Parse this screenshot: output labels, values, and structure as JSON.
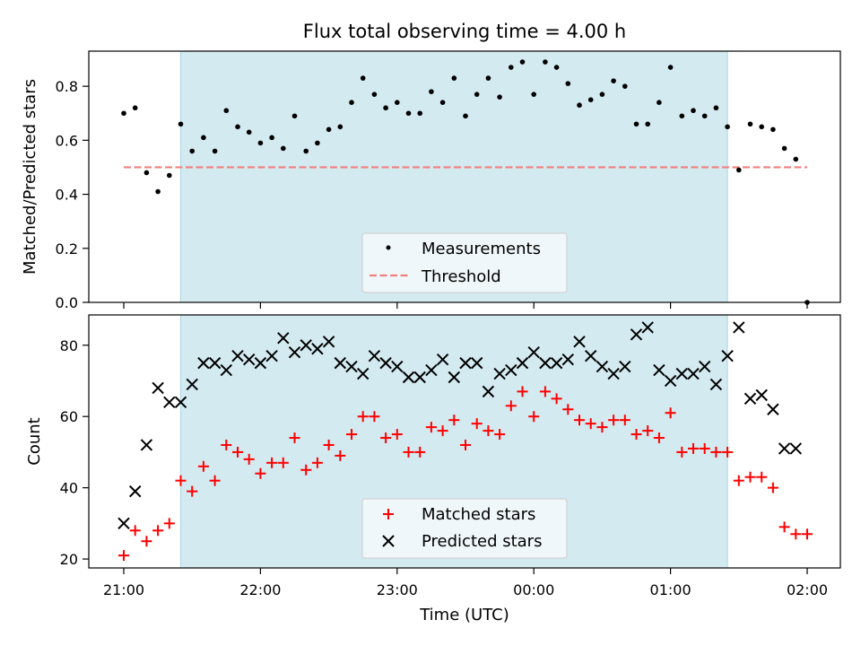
{
  "chart_data": [
    {
      "type": "scatter",
      "title": "Flux total observing time = 4.00 h",
      "ylabel": "Matched/Predicted stars",
      "ylim": [
        0,
        0.93
      ],
      "yticks": [
        "0.0",
        "0.2",
        "0.4",
        "0.6",
        "0.8"
      ],
      "shaded_region": {
        "x_start": "21:25",
        "x_end": "01:25",
        "color": "#d3eaf0"
      },
      "legend": {
        "placement": "bottom-center"
      },
      "threshold": {
        "name": "Threshold",
        "value": 0.5,
        "color": "#f08080",
        "style": "dashed"
      },
      "series": [
        {
          "name": "Measurements",
          "color": "#000000",
          "marker": "dot",
          "x": [
            "21:00",
            "21:05",
            "21:10",
            "21:15",
            "21:20",
            "21:25",
            "21:30",
            "21:35",
            "21:40",
            "21:45",
            "21:50",
            "21:55",
            "22:00",
            "22:05",
            "22:10",
            "22:15",
            "22:20",
            "22:25",
            "22:30",
            "22:35",
            "22:40",
            "22:45",
            "22:50",
            "22:55",
            "23:00",
            "23:05",
            "23:10",
            "23:15",
            "23:20",
            "23:25",
            "23:30",
            "23:35",
            "23:40",
            "23:45",
            "23:50",
            "23:55",
            "00:00",
            "00:05",
            "00:10",
            "00:15",
            "00:20",
            "00:25",
            "00:30",
            "00:35",
            "00:40",
            "00:45",
            "00:50",
            "00:55",
            "01:00",
            "01:05",
            "01:10",
            "01:15",
            "01:20",
            "01:25",
            "01:30",
            "01:35",
            "01:40",
            "01:45",
            "01:50",
            "01:55",
            "02:00"
          ],
          "y": [
            0.7,
            0.72,
            0.48,
            0.41,
            0.47,
            0.66,
            0.56,
            0.61,
            0.56,
            0.71,
            0.65,
            0.63,
            0.59,
            0.61,
            0.57,
            0.69,
            0.56,
            0.59,
            0.64,
            0.65,
            0.74,
            0.83,
            0.77,
            0.72,
            0.74,
            0.7,
            0.7,
            0.78,
            0.74,
            0.83,
            0.69,
            0.77,
            0.83,
            0.76,
            0.87,
            0.89,
            0.77,
            0.89,
            0.87,
            0.81,
            0.73,
            0.75,
            0.77,
            0.82,
            0.8,
            0.66,
            0.66,
            0.74,
            0.87,
            0.69,
            0.71,
            0.69,
            0.72,
            0.65,
            0.49,
            0.66,
            0.65,
            0.64,
            0.57,
            0.53,
            0.0
          ]
        }
      ]
    },
    {
      "type": "scatter",
      "xlabel": "Time (UTC)",
      "ylabel": "Count",
      "ylim": [
        17.5,
        88.5
      ],
      "yticks": [
        "20",
        "40",
        "60",
        "80"
      ],
      "xticks": [
        "21:00",
        "22:00",
        "23:00",
        "00:00",
        "01:00",
        "02:00"
      ],
      "shaded_region": {
        "x_start": "21:25",
        "x_end": "01:25",
        "color": "#d3eaf0"
      },
      "legend": {
        "placement": "bottom-center"
      },
      "series": [
        {
          "name": "Matched stars",
          "color": "#ff0000",
          "marker": "plus",
          "x": [
            "21:00",
            "21:05",
            "21:10",
            "21:15",
            "21:20",
            "21:25",
            "21:30",
            "21:35",
            "21:40",
            "21:45",
            "21:50",
            "21:55",
            "22:00",
            "22:05",
            "22:10",
            "22:15",
            "22:20",
            "22:25",
            "22:30",
            "22:35",
            "22:40",
            "22:45",
            "22:50",
            "22:55",
            "23:00",
            "23:05",
            "23:10",
            "23:15",
            "23:20",
            "23:25",
            "23:30",
            "23:35",
            "23:40",
            "23:45",
            "23:50",
            "23:55",
            "00:00",
            "00:05",
            "00:10",
            "00:15",
            "00:20",
            "00:25",
            "00:30",
            "00:35",
            "00:40",
            "00:45",
            "00:50",
            "00:55",
            "01:00",
            "01:05",
            "01:10",
            "01:15",
            "01:20",
            "01:25",
            "01:30",
            "01:35",
            "01:40",
            "01:45",
            "01:50",
            "01:55",
            "02:00"
          ],
          "y": [
            21,
            28,
            25,
            28,
            30,
            42,
            39,
            46,
            42,
            52,
            50,
            48,
            44,
            47,
            47,
            54,
            45,
            47,
            52,
            49,
            55,
            60,
            60,
            54,
            55,
            50,
            50,
            57,
            56,
            59,
            52,
            58,
            56,
            55,
            63,
            67,
            60,
            67,
            65,
            62,
            59,
            58,
            57,
            59,
            59,
            55,
            56,
            54,
            61,
            50,
            51,
            51,
            50,
            50,
            42,
            43,
            43,
            40,
            29,
            27,
            27
          ]
        },
        {
          "name": "Predicted stars",
          "color": "#000000",
          "marker": "x",
          "x": [
            "21:00",
            "21:05",
            "21:10",
            "21:15",
            "21:20",
            "21:25",
            "21:30",
            "21:35",
            "21:40",
            "21:45",
            "21:50",
            "21:55",
            "22:00",
            "22:05",
            "22:10",
            "22:15",
            "22:20",
            "22:25",
            "22:30",
            "22:35",
            "22:40",
            "22:45",
            "22:50",
            "22:55",
            "23:00",
            "23:05",
            "23:10",
            "23:15",
            "23:20",
            "23:25",
            "23:30",
            "23:35",
            "23:40",
            "23:45",
            "23:50",
            "23:55",
            "00:00",
            "00:05",
            "00:10",
            "00:15",
            "00:20",
            "00:25",
            "00:30",
            "00:35",
            "00:40",
            "00:45",
            "00:50",
            "00:55",
            "01:00",
            "01:05",
            "01:10",
            "01:15",
            "01:20",
            "01:25",
            "01:30",
            "01:35",
            "01:40",
            "01:45",
            "01:50",
            "01:55"
          ],
          "y": [
            30,
            39,
            52,
            68,
            64,
            64,
            69,
            75,
            75,
            73,
            77,
            76,
            75,
            77,
            82,
            78,
            80,
            79,
            81,
            75,
            74,
            72,
            77,
            75,
            74,
            71,
            71,
            73,
            76,
            71,
            75,
            75,
            67,
            72,
            73,
            75,
            78,
            75,
            75,
            76,
            81,
            77,
            74,
            72,
            74,
            83,
            85,
            73,
            70,
            72,
            72,
            74,
            69,
            77,
            85,
            65,
            66,
            62,
            51,
            51
          ]
        }
      ]
    }
  ]
}
